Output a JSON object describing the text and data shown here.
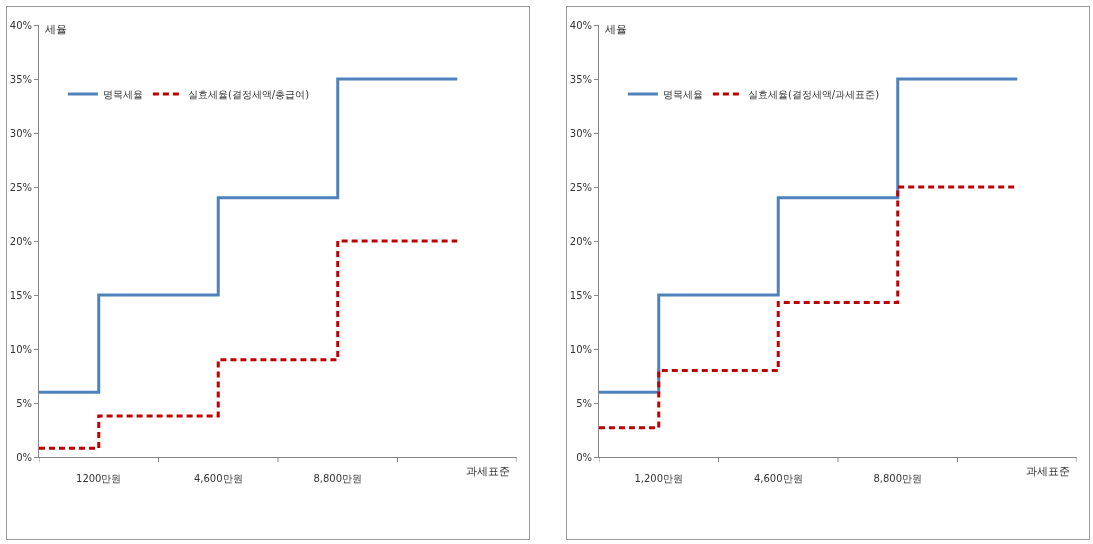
{
  "chart_data": [
    {
      "type": "step",
      "ylabel": "세율",
      "xlabel": "과세표준",
      "categories": [
        null,
        "1200만원",
        null,
        "4,600만원",
        null,
        "8,800만원",
        null,
        null,
        null
      ],
      "ylim": [
        0,
        40
      ],
      "yticks": [
        {
          "value": 0,
          "label": "0%"
        },
        {
          "value": 5,
          "label": "5%"
        },
        {
          "value": 10,
          "label": "10%"
        },
        {
          "value": 15,
          "label": "15%"
        },
        {
          "value": 20,
          "label": "20%"
        },
        {
          "value": 25,
          "label": "25%"
        },
        {
          "value": 30,
          "label": "30%"
        },
        {
          "value": 35,
          "label": "35%"
        },
        {
          "value": 40,
          "label": "40%"
        }
      ],
      "grid": false,
      "legend": "top left",
      "marker": "none",
      "series": [
        {
          "name": "명목세율",
          "color": "#4f81bd",
          "line_style": "solid",
          "values": [
            6,
            15,
            15,
            24,
            24,
            35,
            35,
            35,
            null
          ]
        },
        {
          "name": "실효세율(결정세액/총급여)",
          "color": "#c00000",
          "line_style": "dashed",
          "values": [
            0.8,
            3.8,
            3.8,
            9,
            9,
            20,
            20,
            20,
            null
          ]
        }
      ]
    },
    {
      "type": "step",
      "ylabel": "세율",
      "xlabel": "과세표준",
      "categories": [
        null,
        "1,200만원",
        null,
        "4,600만원",
        null,
        "8,800만원",
        null,
        null,
        null
      ],
      "ylim": [
        0,
        40
      ],
      "yticks": [
        {
          "value": 0,
          "label": "0%"
        },
        {
          "value": 5,
          "label": "5%"
        },
        {
          "value": 10,
          "label": "10%"
        },
        {
          "value": 15,
          "label": "15%"
        },
        {
          "value": 20,
          "label": "20%"
        },
        {
          "value": 25,
          "label": "25%"
        },
        {
          "value": 30,
          "label": "30%"
        },
        {
          "value": 35,
          "label": "35%"
        },
        {
          "value": 40,
          "label": "40%"
        }
      ],
      "grid": false,
      "legend": "top left",
      "marker": "none",
      "series": [
        {
          "name": "명목세율",
          "color": "#4f81bd",
          "line_style": "solid",
          "values": [
            6,
            15,
            15,
            24,
            24,
            35,
            35,
            35,
            null
          ]
        },
        {
          "name": "실효세율(결정세액/과세표준)",
          "color": "#c00000",
          "line_style": "dashed",
          "values": [
            2.7,
            8,
            8,
            14.3,
            14.3,
            25,
            25,
            25,
            null
          ]
        }
      ]
    }
  ]
}
